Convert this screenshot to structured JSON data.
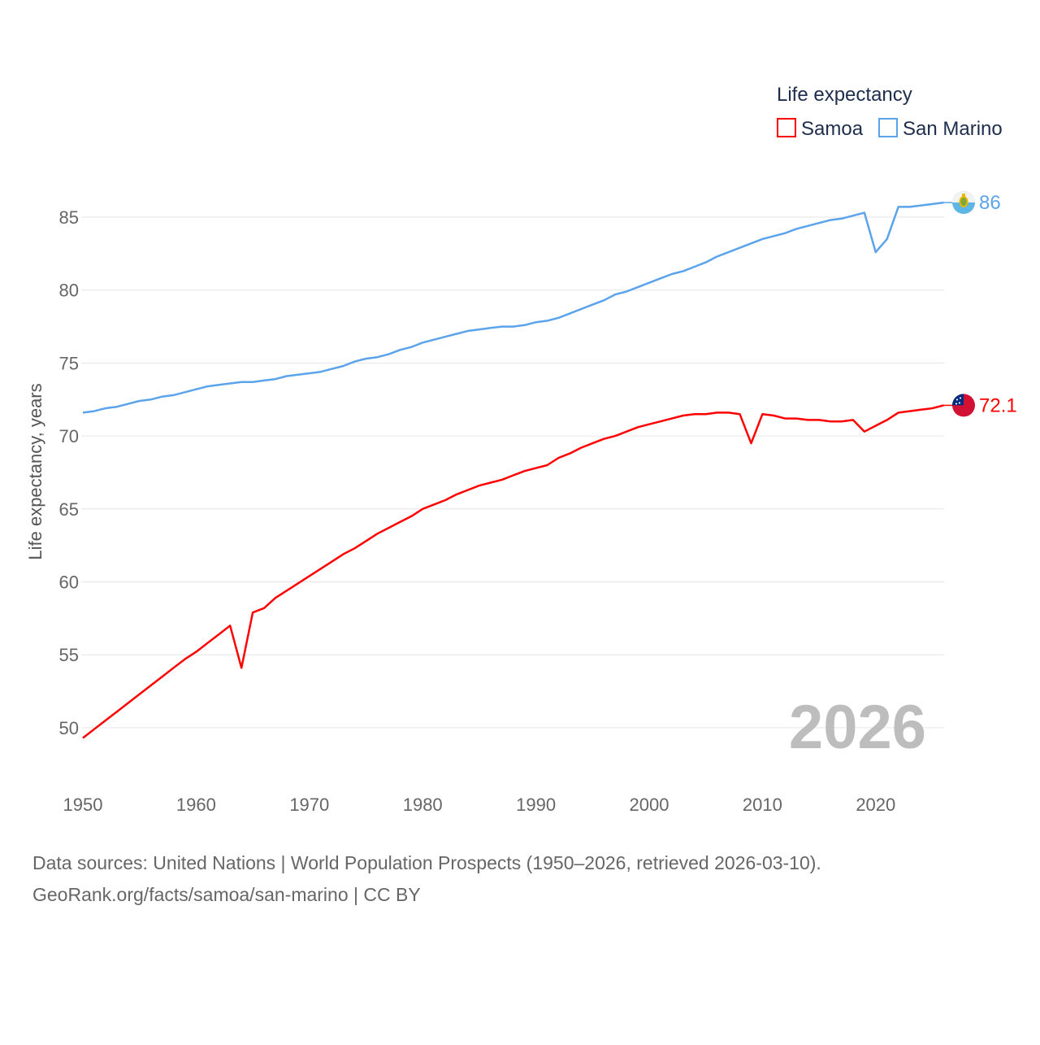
{
  "chart_data": {
    "type": "line",
    "title": "",
    "legend_title": "Life expectancy",
    "legend_position": "top-right",
    "ylabel": "Life expectancy, years",
    "xlabel": "",
    "xlim": [
      1950,
      2026
    ],
    "ylim": [
      47,
      88
    ],
    "x_ticks": [
      1950,
      1960,
      1970,
      1980,
      1990,
      2000,
      2010,
      2020
    ],
    "y_ticks": [
      50,
      55,
      60,
      65,
      70,
      75,
      80,
      85
    ],
    "grid": true,
    "year_label": "2026",
    "series": [
      {
        "name": "Samoa",
        "color": "#ff0000",
        "end_label": "72.1",
        "flag": "samoa-flag",
        "values": [
          49.3,
          49.9,
          50.5,
          51.1,
          51.7,
          52.3,
          52.9,
          53.5,
          54.1,
          54.7,
          55.2,
          55.8,
          56.4,
          57.0,
          54.1,
          57.9,
          58.2,
          58.9,
          59.4,
          59.9,
          60.4,
          60.9,
          61.4,
          61.9,
          62.3,
          62.8,
          63.3,
          63.7,
          64.1,
          64.5,
          65.0,
          65.3,
          65.6,
          66.0,
          66.3,
          66.6,
          66.8,
          67.0,
          67.3,
          67.6,
          67.8,
          68.0,
          68.5,
          68.8,
          69.2,
          69.5,
          69.8,
          70.0,
          70.3,
          70.6,
          70.8,
          71.0,
          71.2,
          71.4,
          71.5,
          71.5,
          71.6,
          71.6,
          71.5,
          69.5,
          71.5,
          71.4,
          71.2,
          71.2,
          71.1,
          71.1,
          71.0,
          71.0,
          71.1,
          70.3,
          70.7,
          71.1,
          71.6,
          71.7,
          71.8,
          71.9,
          72.1
        ]
      },
      {
        "name": "San Marino",
        "color": "#5ba3eb",
        "end_label": "86",
        "flag": "san-marino-flag",
        "values": [
          71.6,
          71.7,
          71.9,
          72.0,
          72.2,
          72.4,
          72.5,
          72.7,
          72.8,
          73.0,
          73.2,
          73.4,
          73.5,
          73.6,
          73.7,
          73.7,
          73.8,
          73.9,
          74.1,
          74.2,
          74.3,
          74.4,
          74.6,
          74.8,
          75.1,
          75.3,
          75.4,
          75.6,
          75.9,
          76.1,
          76.4,
          76.6,
          76.8,
          77.0,
          77.2,
          77.3,
          77.4,
          77.5,
          77.5,
          77.6,
          77.8,
          77.9,
          78.1,
          78.4,
          78.7,
          79.0,
          79.3,
          79.7,
          79.9,
          80.2,
          80.5,
          80.8,
          81.1,
          81.3,
          81.6,
          81.9,
          82.3,
          82.6,
          82.9,
          83.2,
          83.5,
          83.7,
          83.9,
          84.2,
          84.4,
          84.6,
          84.8,
          84.9,
          85.1,
          85.3,
          82.6,
          83.5,
          85.7,
          85.7,
          85.8,
          85.9,
          86.0
        ]
      }
    ],
    "source_lines": [
      "Data sources: United Nations | World Population Prospects (1950–2026, retrieved 2026-03-10).",
      "GeoRank.org/facts/samoa/san-marino | CC BY"
    ]
  }
}
